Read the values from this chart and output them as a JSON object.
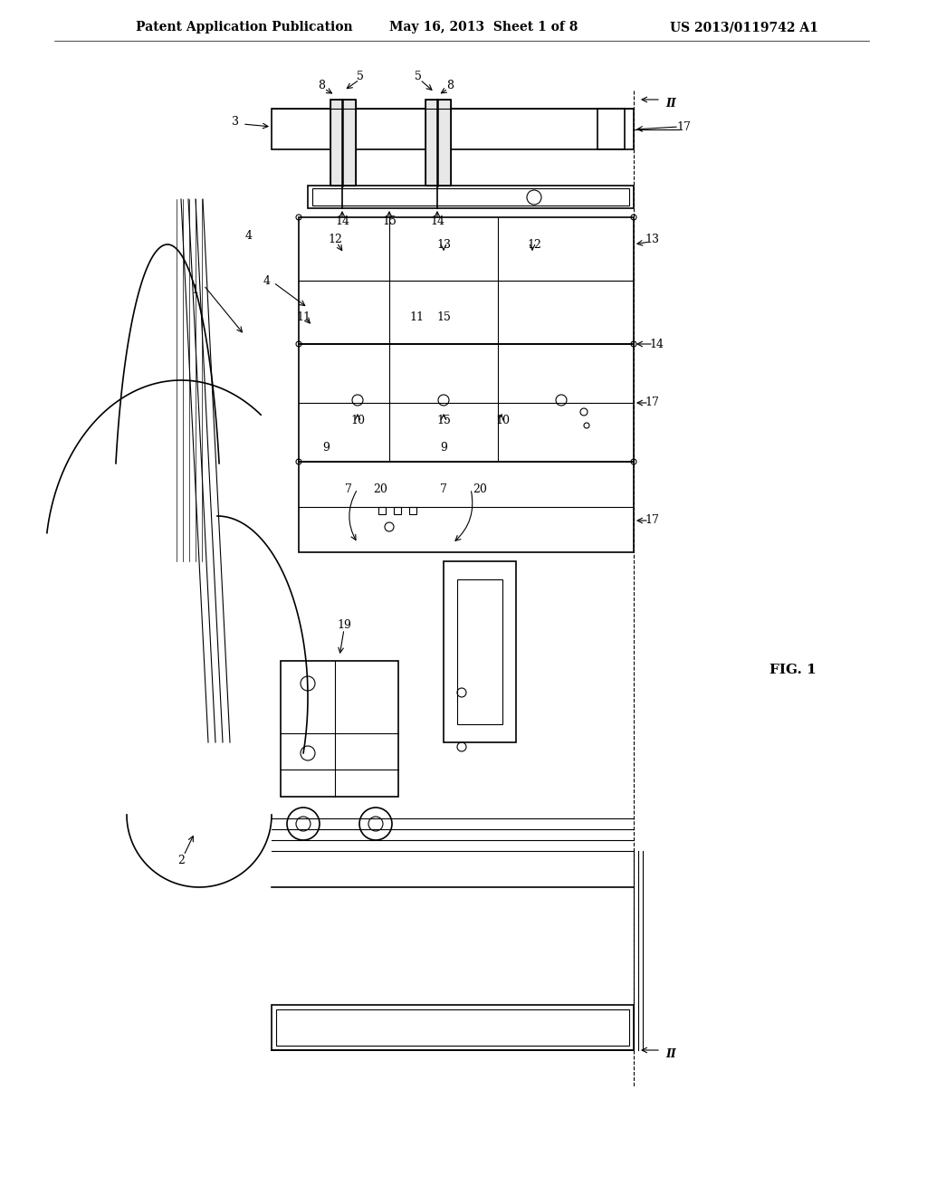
{
  "bg_color": "#ffffff",
  "line_color": "#000000",
  "header_left": "Patent Application Publication",
  "header_center": "May 16, 2013  Sheet 1 of 8",
  "header_right": "US 2013/0119742 A1",
  "fig_label": "FIG. 1",
  "title_fontsize": 10,
  "label_fontsize": 9,
  "fig_label_fontsize": 11
}
